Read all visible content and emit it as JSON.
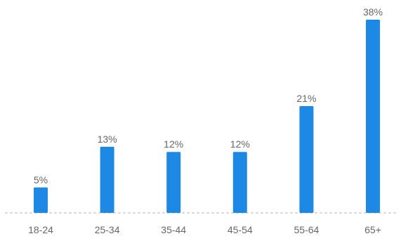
{
  "chart_data": {
    "type": "bar",
    "categories": [
      "18-24",
      "25-34",
      "35-44",
      "45-54",
      "55-64",
      "65+"
    ],
    "values": [
      5,
      13,
      12,
      12,
      21,
      38
    ],
    "data_labels": [
      "5%",
      "13%",
      "12%",
      "12%",
      "21%",
      "38%"
    ],
    "title": "",
    "xlabel": "",
    "ylabel": "",
    "ylim": [
      0,
      38
    ],
    "grid": false,
    "bar_color": "#1E88E5",
    "label_color": "#666666",
    "baseline_color": "#d6d6d6"
  }
}
